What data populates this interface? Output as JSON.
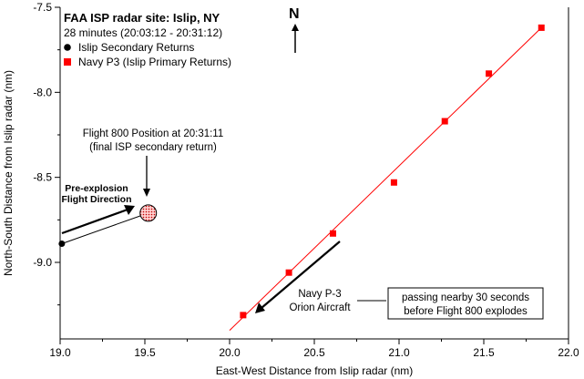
{
  "chart_data": {
    "type": "scatter",
    "title": "FAA ISP radar site: Islip, NY",
    "subtitle": "28 minutes (20:03:12 - 20:31:12)",
    "xlabel": "East-West Distance from Islip radar (nm)",
    "ylabel": "North-South Distance from Islip radar (nm)",
    "xlim": [
      19.0,
      22.0
    ],
    "ylim": [
      -9.45,
      -7.5
    ],
    "x_ticks": [
      "19.0",
      "19.5",
      "20.0",
      "20.5",
      "21.0",
      "21.5",
      "22.0"
    ],
    "y_ticks": [
      "-7.5",
      "-8.0",
      "-8.5",
      "-9.0"
    ],
    "grid": false,
    "legend_position": "top-left",
    "series": [
      {
        "name": "Islip Secondary Returns",
        "marker": "circle",
        "color": "#000000",
        "points": [
          [
            19.01,
            -8.89
          ],
          [
            19.52,
            -8.71
          ]
        ]
      },
      {
        "name": "Navy P3 (Islip Primary Returns)",
        "marker": "square",
        "color": "#ff0000",
        "line": true,
        "points": [
          [
            20.08,
            -9.31
          ],
          [
            20.35,
            -9.06
          ],
          [
            20.61,
            -8.83
          ],
          [
            20.97,
            -8.53
          ],
          [
            21.27,
            -8.17
          ],
          [
            21.53,
            -7.89
          ],
          [
            21.84,
            -7.62
          ]
        ]
      }
    ],
    "trend_line": {
      "color": "#ff0000",
      "start": [
        20.0,
        -9.4
      ],
      "end": [
        21.84,
        -7.62
      ]
    },
    "annotations": {
      "north": "N",
      "flight800_line1": "Flight 800 Position at 20:31:11",
      "flight800_line2": "(final ISP secondary return)",
      "preexplosion_line1": "Pre-explosion",
      "preexplosion_line2": "Flight Direction",
      "navy_line1": "Navy P-3",
      "navy_line2": "Orion Aircraft",
      "box_line1": "passing nearby 30 seconds",
      "box_line2": "before Flight 800 explodes"
    }
  }
}
